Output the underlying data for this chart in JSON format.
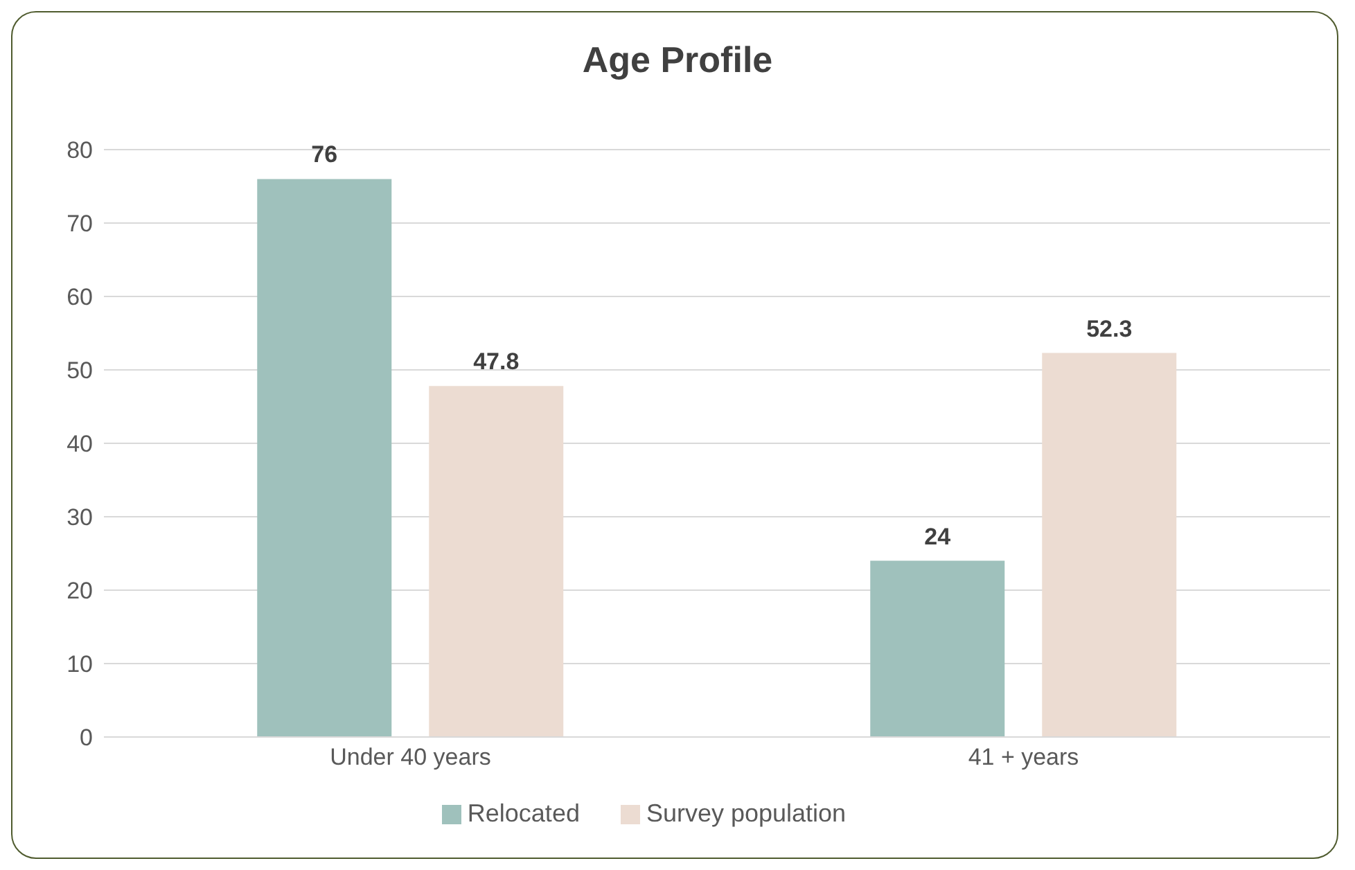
{
  "chart_data": {
    "type": "bar",
    "title": "Age Profile",
    "categories": [
      "Under 40 years",
      "41 + years"
    ],
    "series": [
      {
        "name": "Relocated",
        "color": "#9fc1bc",
        "values": [
          76,
          24
        ]
      },
      {
        "name": "Survey population",
        "color": "#ecdcd2",
        "values": [
          47.8,
          52.3
        ]
      }
    ],
    "ylim": [
      0,
      80
    ],
    "yticks": [
      0,
      10,
      20,
      30,
      40,
      50,
      60,
      70,
      80
    ],
    "grid": "y",
    "legend": "bottom",
    "data_labels": true
  }
}
